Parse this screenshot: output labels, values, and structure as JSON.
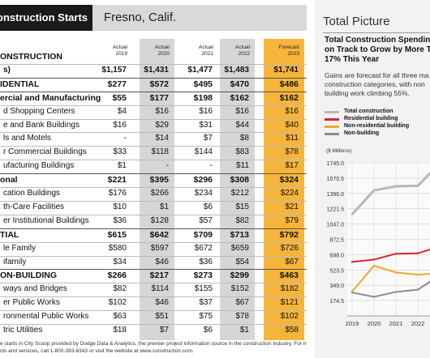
{
  "table": {
    "title": "Construction Starts",
    "city": "Fresno, Calif.",
    "columns": [
      {
        "top": "Actual",
        "year": "2019"
      },
      {
        "top": "Actual",
        "year": "2020"
      },
      {
        "top": "Actual",
        "year": "2021"
      },
      {
        "top": "Actual",
        "year": "2022"
      },
      {
        "top": "Forecast",
        "year": "2023"
      }
    ],
    "rows": [
      {
        "label": "ONSTRUCTION",
        "style": "sec",
        "values": [
          "",
          "",
          "",
          "",
          ""
        ]
      },
      {
        "label": "s)",
        "style": "b",
        "values": [
          "$1,157",
          "$1,431",
          "$1,477",
          "$1,483",
          "$1,741"
        ]
      },
      {
        "label": "IDENTIAL",
        "style": "sec",
        "values": [
          "$277",
          "$572",
          "$495",
          "$470",
          "$486"
        ]
      },
      {
        "label": "ercial and Manufacturing",
        "style": "sec",
        "values": [
          "$55",
          "$177",
          "$198",
          "$162",
          "$162"
        ]
      },
      {
        "label": "d Shopping Centers",
        "style": "",
        "values": [
          "$4",
          "$16",
          "$16",
          "$16",
          "$16"
        ]
      },
      {
        "label": "e and Bank Buildings",
        "style": "",
        "values": [
          "$16",
          "$29",
          "$31",
          "$44",
          "$40"
        ]
      },
      {
        "label": "ls and Motels",
        "style": "",
        "values": [
          "-",
          "$14",
          "$7",
          "$8",
          "$11"
        ]
      },
      {
        "label": "r Commercial Buildings",
        "style": "",
        "values": [
          "$33",
          "$118",
          "$144",
          "$83",
          "$78"
        ]
      },
      {
        "label": "ufacturing Buildings",
        "style": "",
        "values": [
          "$1",
          "-",
          "-",
          "$11",
          "$17"
        ]
      },
      {
        "label": "onal",
        "style": "sec",
        "values": [
          "$221",
          "$395",
          "$296",
          "$308",
          "$324"
        ]
      },
      {
        "label": "cation Buildings",
        "style": "",
        "values": [
          "$176",
          "$266",
          "$234",
          "$212",
          "$224"
        ]
      },
      {
        "label": "th-Care Facilities",
        "style": "",
        "values": [
          "$10",
          "$1",
          "$6",
          "$15",
          "$21"
        ]
      },
      {
        "label": "er Institutional Buildings",
        "style": "",
        "values": [
          "$36",
          "$128",
          "$57",
          "$82",
          "$79"
        ]
      },
      {
        "label": "TIAL",
        "style": "sec",
        "values": [
          "$615",
          "$642",
          "$709",
          "$713",
          "$792"
        ]
      },
      {
        "label": "le Family",
        "style": "",
        "values": [
          "$580",
          "$597",
          "$672",
          "$659",
          "$726"
        ]
      },
      {
        "label": "ifamily",
        "style": "",
        "values": [
          "$34",
          "$46",
          "$36",
          "$54",
          "$67"
        ]
      },
      {
        "label": "ON-BUILDING",
        "style": "sec",
        "values": [
          "$266",
          "$217",
          "$273",
          "$299",
          "$463"
        ]
      },
      {
        "label": "ways and Bridges",
        "style": "",
        "values": [
          "$82",
          "$114",
          "$155",
          "$152",
          "$182"
        ]
      },
      {
        "label": "er Public Works",
        "style": "",
        "values": [
          "$102",
          "$46",
          "$37",
          "$67",
          "$121"
        ]
      },
      {
        "label": "ronmental Public Works",
        "style": "",
        "values": [
          "$63",
          "$51",
          "$75",
          "$78",
          "$102"
        ]
      },
      {
        "label": "tric Utilities",
        "style": "",
        "values": [
          "$18",
          "$7",
          "$6",
          "$1",
          "$58"
        ]
      }
    ],
    "footnote_1": "e starts in City Scoop provided by Dodge Data & Analytics, the premier project information source in the construction industry. For more construction starts or general in",
    "footnote_2": "cts and services, call 1-800-393-6343 or visit the website at www.construction.com."
  },
  "panel": {
    "title": "Total Picture",
    "headline_1": "Total Construction Spending",
    "headline_2": "on Track to Grow by More Th",
    "headline_3": "17% This Year",
    "sub_1": "Gains are forecast for all three ma",
    "sub_2": "construction categories, with non",
    "sub_3": "building work climbing 55%.",
    "unit": "($ Millions)"
  },
  "chart_data": {
    "type": "line",
    "x": [
      "2019",
      "2020",
      "2021",
      "2022",
      "2023"
    ],
    "ylim": [
      0,
      1745
    ],
    "yticks": [
      "1745.0",
      "1570.5",
      "1396.0",
      "1221.5",
      "1047.0",
      "872.5",
      "698.0",
      "523.5",
      "349.0",
      "174.5"
    ],
    "series": [
      {
        "name": "Total construction",
        "color": "#b8b8b8",
        "values": [
          1157,
          1431,
          1477,
          1483,
          1741
        ]
      },
      {
        "name": "Residential building",
        "color": "#d7282f",
        "values": [
          615,
          642,
          709,
          713,
          792
        ]
      },
      {
        "name": "Non-residential building",
        "color": "#f0a92a",
        "values": [
          277,
          572,
          495,
          470,
          486
        ]
      },
      {
        "name": "Non-building",
        "color": "#8c8c8c",
        "values": [
          266,
          217,
          273,
          299,
          463
        ]
      }
    ]
  }
}
